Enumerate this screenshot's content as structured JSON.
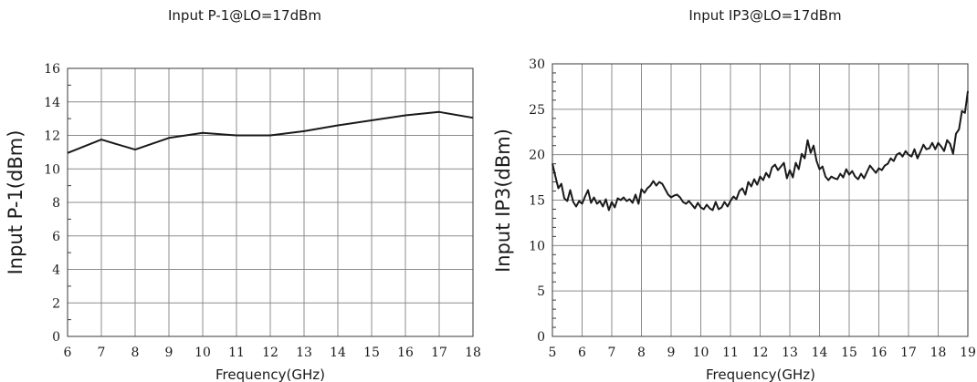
{
  "chart_data": [
    {
      "type": "line",
      "title": "Input P-1@LO=17dBm",
      "xlabel": "Frequency(GHz)",
      "ylabel": "Input P-1(dBm)",
      "xlim": [
        6,
        18
      ],
      "ylim": [
        0,
        16
      ],
      "xticks": [
        6,
        7,
        8,
        9,
        10,
        11,
        12,
        13,
        14,
        15,
        16,
        17,
        18
      ],
      "yticks": [
        0,
        2,
        4,
        6,
        8,
        10,
        12,
        14,
        16
      ],
      "grid": true,
      "series": [
        {
          "x": [
            6,
            7,
            8,
            9,
            10,
            11,
            12,
            13,
            14,
            15,
            16,
            17,
            18
          ],
          "y": [
            10.95,
            11.75,
            11.15,
            11.85,
            12.15,
            12.0,
            12.0,
            12.25,
            12.6,
            12.9,
            13.2,
            13.4,
            13.05
          ]
        }
      ]
    },
    {
      "type": "line",
      "title": "Input IP3@LO=17dBm",
      "xlabel": "Frequency(GHz)",
      "ylabel": "Input IP3(dBm)",
      "xlim": [
        5,
        19
      ],
      "ylim": [
        0,
        30
      ],
      "xticks": [
        5,
        6,
        7,
        8,
        9,
        10,
        11,
        12,
        13,
        14,
        15,
        16,
        17,
        18,
        19
      ],
      "yticks": [
        0,
        5,
        10,
        15,
        20,
        25,
        30
      ],
      "grid": true,
      "series": [
        {
          "x": [
            5.0,
            5.1,
            5.2,
            5.3,
            5.4,
            5.5,
            5.6,
            5.7,
            5.8,
            5.9,
            6.0,
            6.1,
            6.2,
            6.3,
            6.4,
            6.5,
            6.6,
            6.7,
            6.8,
            6.9,
            7.0,
            7.1,
            7.2,
            7.3,
            7.4,
            7.5,
            7.6,
            7.7,
            7.8,
            7.9,
            8.0,
            8.1,
            8.2,
            8.3,
            8.4,
            8.5,
            8.6,
            8.7,
            8.8,
            8.9,
            9.0,
            9.1,
            9.2,
            9.3,
            9.4,
            9.5,
            9.6,
            9.7,
            9.8,
            9.9,
            10.0,
            10.1,
            10.2,
            10.3,
            10.4,
            10.5,
            10.6,
            10.7,
            10.8,
            10.9,
            11.0,
            11.1,
            11.2,
            11.3,
            11.4,
            11.5,
            11.6,
            11.7,
            11.8,
            11.9,
            12.0,
            12.1,
            12.2,
            12.3,
            12.4,
            12.5,
            12.6,
            12.7,
            12.8,
            12.9,
            13.0,
            13.1,
            13.2,
            13.3,
            13.4,
            13.5,
            13.6,
            13.7,
            13.8,
            13.9,
            14.0,
            14.1,
            14.2,
            14.3,
            14.4,
            14.5,
            14.6,
            14.7,
            14.8,
            14.9,
            15.0,
            15.1,
            15.2,
            15.3,
            15.4,
            15.5,
            15.6,
            15.7,
            15.8,
            15.9,
            16.0,
            16.1,
            16.2,
            16.3,
            16.4,
            16.5,
            16.6,
            16.7,
            16.8,
            16.9,
            17.0,
            17.1,
            17.2,
            17.3,
            17.4,
            17.5,
            17.6,
            17.7,
            17.8,
            17.9,
            18.0,
            18.1,
            18.2,
            18.3,
            18.4,
            18.5,
            18.6,
            18.7,
            18.8,
            18.9,
            19.0
          ],
          "y": [
            19.0,
            17.6,
            16.3,
            16.8,
            15.2,
            14.9,
            16.1,
            14.8,
            14.3,
            14.9,
            14.6,
            15.4,
            16.1,
            14.7,
            15.3,
            14.6,
            14.9,
            14.3,
            15.1,
            13.9,
            14.8,
            14.2,
            15.2,
            15.0,
            15.3,
            14.9,
            15.1,
            14.7,
            15.6,
            14.6,
            16.2,
            15.8,
            16.3,
            16.6,
            17.1,
            16.6,
            17.0,
            16.8,
            16.2,
            15.6,
            15.3,
            15.5,
            15.6,
            15.3,
            14.8,
            14.6,
            14.9,
            14.5,
            14.1,
            14.7,
            14.2,
            14.0,
            14.5,
            14.1,
            13.9,
            14.8,
            14.0,
            14.2,
            14.8,
            14.3,
            14.9,
            15.4,
            15.1,
            16.0,
            16.3,
            15.6,
            17.0,
            16.5,
            17.3,
            16.7,
            17.6,
            17.2,
            18.0,
            17.5,
            18.6,
            18.9,
            18.3,
            18.7,
            19.1,
            17.4,
            18.3,
            17.5,
            19.1,
            18.4,
            20.1,
            19.6,
            21.6,
            20.2,
            21.0,
            19.3,
            18.4,
            18.7,
            17.6,
            17.2,
            17.6,
            17.4,
            17.3,
            17.9,
            17.5,
            18.4,
            17.8,
            18.2,
            17.6,
            17.3,
            17.9,
            17.4,
            18.1,
            18.8,
            18.4,
            18.0,
            18.5,
            18.3,
            18.8,
            19.0,
            19.6,
            19.3,
            20.0,
            20.2,
            19.8,
            20.4,
            20.0,
            19.8,
            20.6,
            19.6,
            20.3,
            21.1,
            20.6,
            20.7,
            21.3,
            20.6,
            21.3,
            20.9,
            20.4,
            21.6,
            21.2,
            20.1,
            22.3,
            22.8,
            24.8,
            24.6,
            27.0
          ]
        }
      ]
    }
  ]
}
